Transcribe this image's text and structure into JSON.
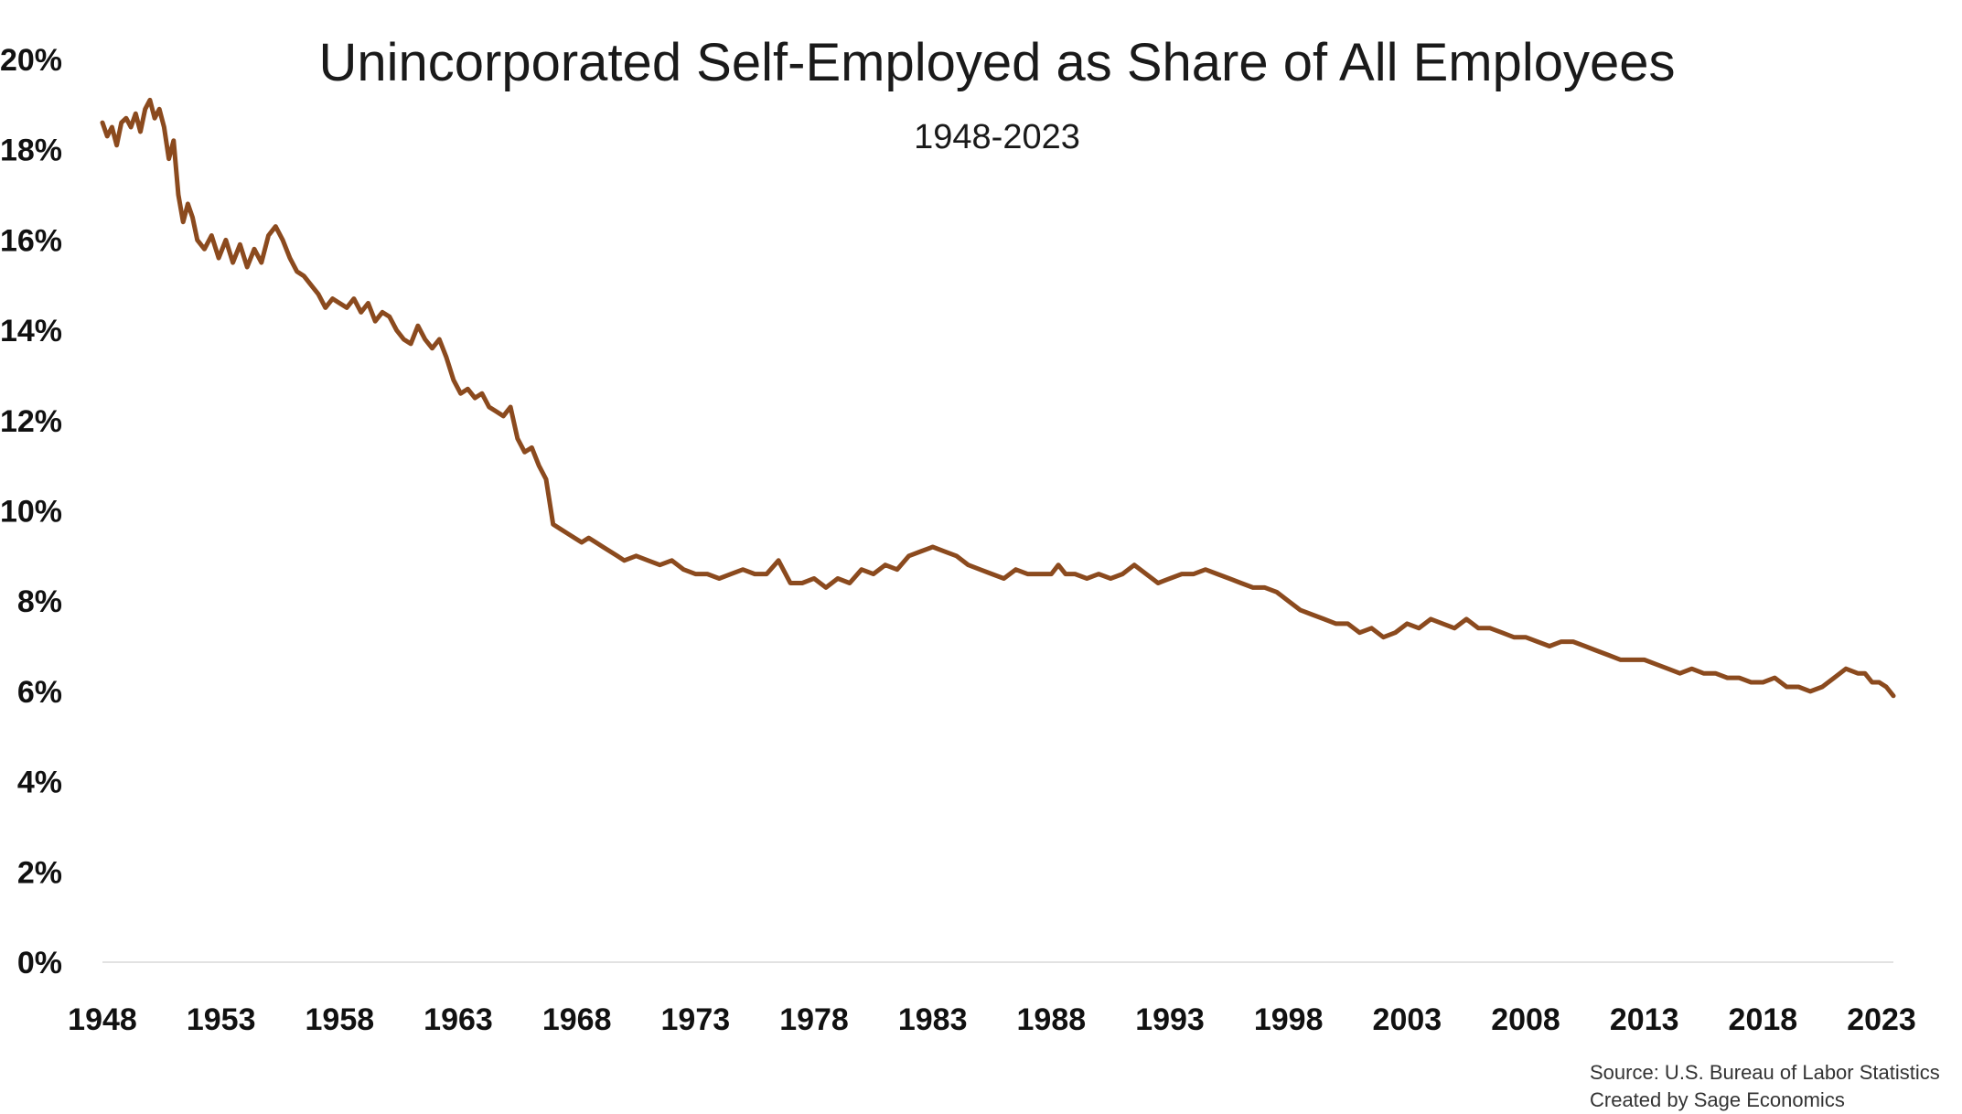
{
  "footer": {
    "source": "Source: U.S. Bureau of Labor Statistics",
    "credit": "Created by Sage Economics"
  },
  "chart_data": {
    "type": "line",
    "title": "Unincorporated Self-Employed as Share of All Employees",
    "subtitle": "1948-2023",
    "xlabel": "",
    "ylabel": "",
    "ylim": [
      0,
      20
    ],
    "xlim": [
      1948,
      2023.5
    ],
    "grid": false,
    "line_color": "#8b4a1e",
    "yticks": [
      "0%",
      "2%",
      "4%",
      "6%",
      "8%",
      "10%",
      "12%",
      "14%",
      "16%",
      "18%",
      "20%"
    ],
    "xticks": [
      "1948",
      "1953",
      "1958",
      "1963",
      "1968",
      "1973",
      "1978",
      "1983",
      "1988",
      "1993",
      "1998",
      "2003",
      "2008",
      "2013",
      "2018",
      "2023"
    ],
    "series": [
      {
        "x": [
          1948.0,
          1948.2,
          1948.4,
          1948.6,
          1948.8,
          1949.0,
          1949.2,
          1949.4,
          1949.6,
          1949.8,
          1950.0,
          1950.2,
          1950.4,
          1950.6,
          1950.8,
          1951.0,
          1951.2,
          1951.4,
          1951.6,
          1951.8,
          1952.0,
          1952.3,
          1952.6,
          1952.9,
          1953.2,
          1953.5,
          1953.8,
          1954.1,
          1954.4,
          1954.7,
          1955.0,
          1955.3,
          1955.6,
          1955.9,
          1956.2,
          1956.5,
          1956.8,
          1957.1,
          1957.4,
          1957.7,
          1958.0,
          1958.3,
          1958.6,
          1958.9,
          1959.2,
          1959.5,
          1959.8,
          1960.1,
          1960.4,
          1960.7,
          1961.0,
          1961.3,
          1961.6,
          1961.9,
          1962.2,
          1962.5,
          1962.8,
          1963.1,
          1963.4,
          1963.7,
          1964.0,
          1964.3,
          1964.6,
          1964.9,
          1965.2,
          1965.5,
          1965.8,
          1966.1,
          1966.4,
          1966.7,
          1967.0,
          1967.3,
          1967.6,
          1967.9,
          1968.2,
          1968.5,
          1968.8,
          1969.1,
          1969.4,
          1969.7,
          1970.0,
          1970.5,
          1971.0,
          1971.5,
          1972.0,
          1972.5,
          1973.0,
          1973.5,
          1974.0,
          1974.5,
          1975.0,
          1975.5,
          1976.0,
          1976.5,
          1977.0,
          1977.5,
          1978.0,
          1978.5,
          1979.0,
          1979.5,
          1980.0,
          1980.5,
          1981.0,
          1981.5,
          1982.0,
          1982.5,
          1983.0,
          1983.5,
          1984.0,
          1984.5,
          1985.0,
          1985.5,
          1986.0,
          1986.5,
          1987.0,
          1987.5,
          1988.0,
          1988.3,
          1988.6,
          1989.0,
          1989.5,
          1990.0,
          1990.5,
          1991.0,
          1991.5,
          1992.0,
          1992.5,
          1993.0,
          1993.5,
          1994.0,
          1994.5,
          1995.0,
          1995.5,
          1996.0,
          1996.5,
          1997.0,
          1997.5,
          1998.0,
          1998.5,
          1999.0,
          1999.5,
          2000.0,
          2000.5,
          2001.0,
          2001.5,
          2002.0,
          2002.5,
          2003.0,
          2003.5,
          2004.0,
          2004.5,
          2005.0,
          2005.5,
          2006.0,
          2006.5,
          2007.0,
          2007.5,
          2008.0,
          2008.5,
          2009.0,
          2009.5,
          2010.0,
          2010.5,
          2011.0,
          2011.5,
          2012.0,
          2012.5,
          2013.0,
          2013.5,
          2014.0,
          2014.5,
          2015.0,
          2015.5,
          2016.0,
          2016.5,
          2017.0,
          2017.5,
          2018.0,
          2018.5,
          2019.0,
          2019.5,
          2020.0,
          2020.5,
          2021.0,
          2021.5,
          2022.0,
          2022.3,
          2022.6,
          2022.9,
          2023.2,
          2023.5
        ],
        "y": [
          18.6,
          18.3,
          18.5,
          18.1,
          18.6,
          18.7,
          18.5,
          18.8,
          18.4,
          18.9,
          19.1,
          18.7,
          18.9,
          18.5,
          17.8,
          18.2,
          17.0,
          16.4,
          16.8,
          16.5,
          16.0,
          15.8,
          16.1,
          15.6,
          16.0,
          15.5,
          15.9,
          15.4,
          15.8,
          15.5,
          16.1,
          16.3,
          16.0,
          15.6,
          15.3,
          15.2,
          15.0,
          14.8,
          14.5,
          14.7,
          14.6,
          14.5,
          14.7,
          14.4,
          14.6,
          14.2,
          14.4,
          14.3,
          14.0,
          13.8,
          13.7,
          14.1,
          13.8,
          13.6,
          13.8,
          13.4,
          12.9,
          12.6,
          12.7,
          12.5,
          12.6,
          12.3,
          12.2,
          12.1,
          12.3,
          11.6,
          11.3,
          11.4,
          11.0,
          10.7,
          9.7,
          9.6,
          9.5,
          9.4,
          9.3,
          9.4,
          9.3,
          9.2,
          9.1,
          9.0,
          8.9,
          9.0,
          8.9,
          8.8,
          8.9,
          8.7,
          8.6,
          8.6,
          8.5,
          8.6,
          8.7,
          8.6,
          8.6,
          8.9,
          8.4,
          8.4,
          8.5,
          8.3,
          8.5,
          8.4,
          8.7,
          8.6,
          8.8,
          8.7,
          9.0,
          9.1,
          9.2,
          9.1,
          9.0,
          8.8,
          8.7,
          8.6,
          8.5,
          8.7,
          8.6,
          8.6,
          8.6,
          8.8,
          8.6,
          8.6,
          8.5,
          8.6,
          8.5,
          8.6,
          8.8,
          8.6,
          8.4,
          8.5,
          8.6,
          8.6,
          8.7,
          8.6,
          8.5,
          8.4,
          8.3,
          8.3,
          8.2,
          8.0,
          7.8,
          7.7,
          7.6,
          7.5,
          7.5,
          7.3,
          7.4,
          7.2,
          7.3,
          7.5,
          7.4,
          7.6,
          7.5,
          7.4,
          7.6,
          7.4,
          7.4,
          7.3,
          7.2,
          7.2,
          7.1,
          7.0,
          7.1,
          7.1,
          7.0,
          6.9,
          6.8,
          6.7,
          6.7,
          6.7,
          6.6,
          6.5,
          6.4,
          6.5,
          6.4,
          6.4,
          6.3,
          6.3,
          6.2,
          6.2,
          6.3,
          6.1,
          6.1,
          6.0,
          6.1,
          6.3,
          6.5,
          6.4,
          6.4,
          6.2,
          6.2,
          6.1,
          5.9
        ]
      }
    ]
  }
}
